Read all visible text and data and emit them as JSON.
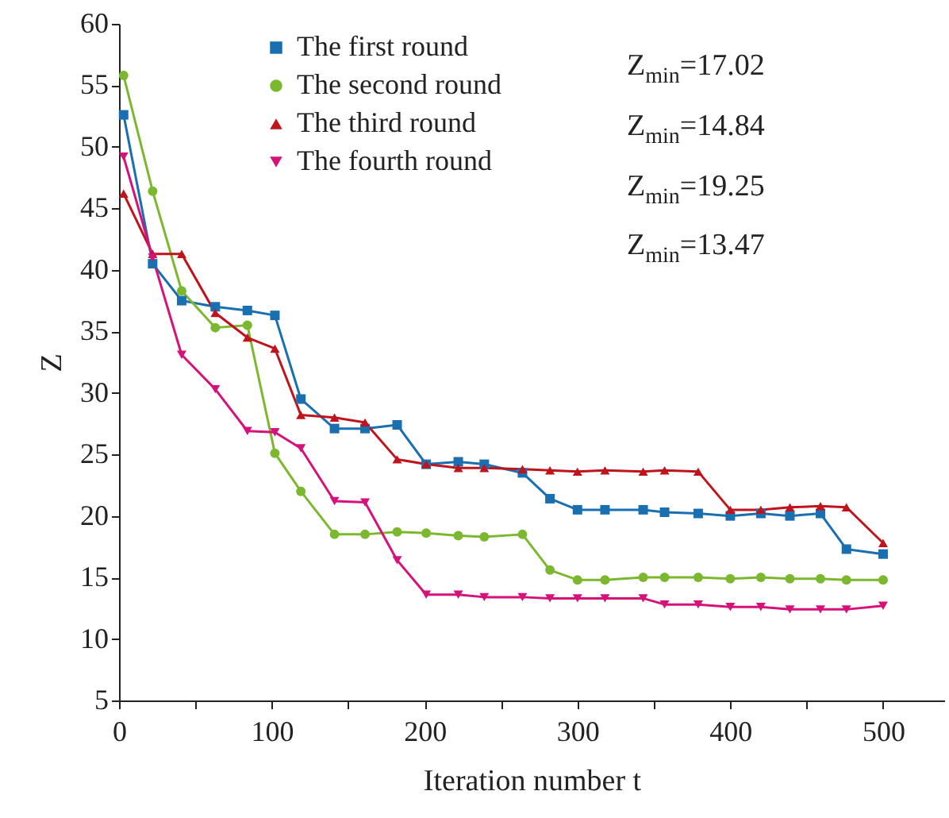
{
  "chart_data": {
    "type": "line",
    "xlabel": "Iteration number t",
    "ylabel": "Z",
    "x": [
      3,
      22,
      41,
      63,
      84,
      102,
      119,
      141,
      161,
      182,
      201,
      222,
      239,
      264,
      282,
      300,
      318,
      343,
      357,
      379,
      400,
      420,
      439,
      459,
      476,
      500
    ],
    "series": [
      {
        "name": "The first round",
        "color": "#1a6fb0",
        "marker": "square",
        "values": [
          52.6,
          40.5,
          37.5,
          37.0,
          36.7,
          36.3,
          29.5,
          27.1,
          27.1,
          27.4,
          24.2,
          24.4,
          24.2,
          23.5,
          21.4,
          20.5,
          20.5,
          20.5,
          20.3,
          20.2,
          20.0,
          20.2,
          20.0,
          20.2,
          17.3,
          16.9
        ]
      },
      {
        "name": "The second round",
        "color": "#7cb82f",
        "marker": "circle",
        "values": [
          55.8,
          46.4,
          38.3,
          35.3,
          35.5,
          25.1,
          22.0,
          18.5,
          18.5,
          18.7,
          18.6,
          18.4,
          18.3,
          18.5,
          15.6,
          14.8,
          14.8,
          15.0,
          15.0,
          15.0,
          14.9,
          15.0,
          14.9,
          14.9,
          14.8,
          14.8
        ]
      },
      {
        "name": "The third round",
        "color": "#c0141c",
        "marker": "triangle",
        "values": [
          46.2,
          41.3,
          41.3,
          36.5,
          34.5,
          33.6,
          28.2,
          28.0,
          27.6,
          24.6,
          24.2,
          23.9,
          23.9,
          23.8,
          23.7,
          23.6,
          23.7,
          23.6,
          23.7,
          23.6,
          20.5,
          20.5,
          20.7,
          20.8,
          20.7,
          17.8
        ]
      },
      {
        "name": "The fourth round",
        "color": "#d6127a",
        "marker": "triangle-down",
        "values": [
          49.2,
          41.0,
          33.1,
          30.3,
          26.9,
          26.8,
          25.5,
          21.2,
          21.1,
          16.4,
          13.6,
          13.6,
          13.4,
          13.4,
          13.3,
          13.3,
          13.3,
          13.3,
          12.8,
          12.8,
          12.6,
          12.6,
          12.4,
          12.4,
          12.4,
          12.7
        ]
      }
    ],
    "xlim": [
      0,
      540
    ],
    "ylim": [
      5,
      60
    ],
    "xticks": [
      0,
      {
        "value": 50,
        "label": null
      },
      100,
      {
        "value": 150,
        "label": null
      },
      200,
      {
        "value": 250,
        "label": null
      },
      300,
      {
        "value": 350,
        "label": null
      },
      400,
      {
        "value": 450,
        "label": null
      },
      500
    ],
    "yticks": [
      5,
      10,
      15,
      20,
      25,
      30,
      35,
      40,
      45,
      50,
      55,
      60
    ],
    "annotations": [
      "Z$_{min}$=17.02",
      "Z$_{min}$=14.84",
      "Z$_{min}$=19.25",
      "Z$_{min}$=13.47"
    ],
    "legend": "top",
    "grid": false,
    "line_style": "solid"
  }
}
